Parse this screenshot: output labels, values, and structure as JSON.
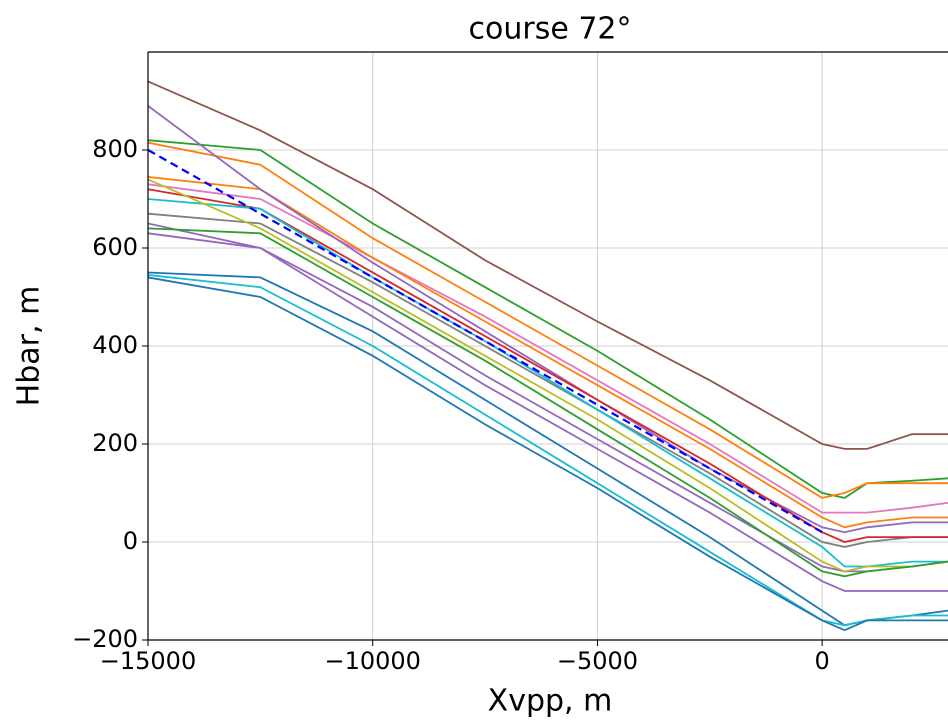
{
  "chart_data": {
    "type": "line",
    "title": "course 72°",
    "x_label": "Xvpp, m",
    "y_label": "Hbar, m",
    "xlim": [
      -15000,
      2800
    ],
    "ylim": [
      -200,
      1000
    ],
    "xticks": [
      {
        "value": -15000,
        "label": "−15000"
      },
      {
        "value": -10000,
        "label": "−10000"
      },
      {
        "value": -5000,
        "label": "−5000"
      },
      0
    ],
    "yticks": [
      {
        "value": -200,
        "label": "−200"
      },
      0,
      200,
      400,
      600,
      800
    ],
    "grid": true,
    "x": [
      -15000,
      -12500,
      -10000,
      -7500,
      -5000,
      -2500,
      0,
      500,
      1000,
      2000,
      2800
    ],
    "series": [
      {
        "color": "#8c564b",
        "values": [
          940,
          840,
          720,
          575,
          450,
          330,
          200,
          190,
          190,
          220,
          220
        ]
      },
      {
        "color": "#2ca02c",
        "values": [
          820,
          800,
          650,
          520,
          390,
          250,
          100,
          90,
          120,
          125,
          130
        ]
      },
      {
        "color": "#ff7f0e",
        "values": [
          815,
          770,
          620,
          490,
          360,
          230,
          90,
          100,
          120,
          120,
          120
        ]
      },
      {
        "color": "#e377c2",
        "values": [
          730,
          700,
          580,
          460,
          330,
          200,
          60,
          60,
          60,
          70,
          80
        ]
      },
      {
        "color": "#ff7f0e",
        "values": [
          745,
          720,
          580,
          450,
          320,
          190,
          50,
          30,
          40,
          50,
          50
        ]
      },
      {
        "color": "#9467bd",
        "values": [
          890,
          720,
          570,
          430,
          290,
          150,
          30,
          20,
          30,
          40,
          40
        ]
      },
      {
        "color": "#7f7f7f",
        "values": [
          670,
          650,
          530,
          400,
          270,
          140,
          0,
          -10,
          0,
          10,
          10
        ]
      },
      {
        "color": "#d62728",
        "values": [
          720,
          680,
          550,
          420,
          290,
          160,
          20,
          0,
          10,
          10,
          10
        ]
      },
      {
        "color": "#17becf",
        "values": [
          700,
          680,
          540,
          410,
          270,
          130,
          -10,
          -50,
          -50,
          -40,
          -40
        ]
      },
      {
        "color": "#9467bd",
        "values": [
          650,
          600,
          480,
          340,
          210,
          80,
          -50,
          -60,
          -60,
          -50,
          -40
        ]
      },
      {
        "color": "#bcbd22",
        "values": [
          740,
          640,
          510,
          380,
          250,
          110,
          -40,
          -60,
          -50,
          -50,
          -40
        ]
      },
      {
        "color": "#2ca02c",
        "values": [
          640,
          630,
          500,
          370,
          230,
          90,
          -60,
          -70,
          -60,
          -50,
          -40
        ]
      },
      {
        "color": "#9467bd",
        "values": [
          630,
          600,
          460,
          320,
          190,
          60,
          -80,
          -100,
          -100,
          -100,
          -100
        ]
      },
      {
        "color": "#1f77b4",
        "values": [
          550,
          540,
          430,
          290,
          150,
          10,
          -140,
          -170,
          -160,
          -150,
          -140
        ]
      },
      {
        "color": "#17becf",
        "values": [
          545,
          520,
          400,
          260,
          120,
          -20,
          -160,
          -170,
          -160,
          -150,
          -150
        ]
      },
      {
        "color": "#1f77b4",
        "values": [
          540,
          500,
          380,
          240,
          110,
          -30,
          -160,
          -180,
          -160,
          -160,
          -160
        ]
      },
      {
        "color": "#0000ff",
        "dash": true,
        "values": [
          800,
          670,
          540,
          410,
          280,
          150,
          20,
          null,
          null,
          null,
          null
        ]
      }
    ]
  }
}
